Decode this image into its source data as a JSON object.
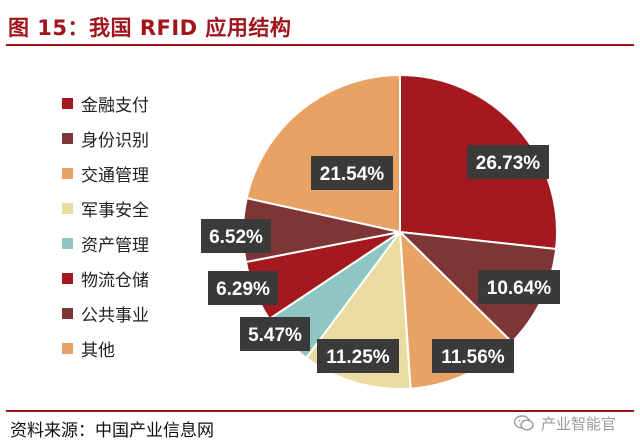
{
  "figure": {
    "title": "图 15：我国 RFID 应用结构",
    "source": "资料来源：中国产业信息网",
    "watermark": "产业智能官"
  },
  "chart_data": {
    "type": "pie",
    "title": "",
    "legend_position": "left",
    "label_format": "percent",
    "start_angle_deg": 0,
    "direction": "clockwise",
    "slices": [
      {
        "label": "金融支付",
        "value": 26.73,
        "display": "26.73%",
        "color": "#a3191e"
      },
      {
        "label": "身份识别",
        "value": 10.64,
        "display": "10.64%",
        "color": "#7d3535"
      },
      {
        "label": "交通管理",
        "value": 11.56,
        "display": "11.56%",
        "color": "#e8a364"
      },
      {
        "label": "军事安全",
        "value": 11.25,
        "display": "11.25%",
        "color": "#eadca0"
      },
      {
        "label": "资产管理",
        "value": 5.47,
        "display": "5.47%",
        "color": "#8ec7c2"
      },
      {
        "label": "物流仓储",
        "value": 6.29,
        "display": "6.29%",
        "color": "#a3191e"
      },
      {
        "label": "公共事业",
        "value": 6.52,
        "display": "6.52%",
        "color": "#7d3535"
      },
      {
        "label": "其他",
        "value": 21.54,
        "display": "21.54%",
        "color": "#e8a364"
      }
    ],
    "label_box_color": "#3a3a3a"
  }
}
